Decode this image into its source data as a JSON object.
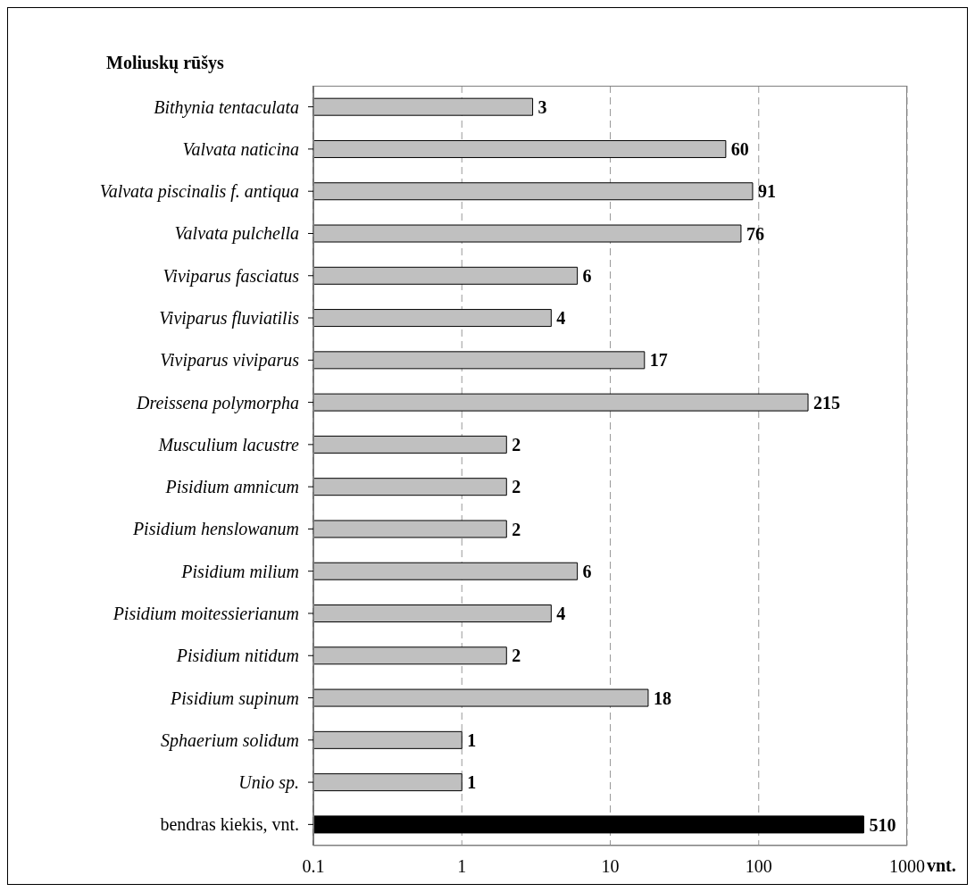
{
  "chart_data": {
    "type": "bar",
    "orientation": "horizontal",
    "ylabel": "Moliuskų rūšys",
    "xlabel": "vnt.",
    "categories": [
      "Bithynia tentaculata",
      "Valvata naticina",
      "Valvata piscinalis f. antiqua",
      "Valvata pulchella",
      "Viviparus fasciatus",
      "Viviparus fluviatilis",
      "Viviparus viviparus",
      "Dreissena polymorpha",
      "Musculium lacustre",
      "Pisidium amnicum",
      "Pisidium henslowanum",
      "Pisidium milium",
      "Pisidium moitessierianum",
      "Pisidium nitidum",
      "Pisidium supinum",
      "Sphaerium solidum",
      "Unio sp.",
      "bendras kiekis, vnt."
    ],
    "values": [
      3,
      60,
      91,
      76,
      6,
      4,
      17,
      215,
      2,
      2,
      2,
      6,
      4,
      2,
      18,
      1,
      1,
      510
    ],
    "colors": [
      "#c0c0c0",
      "#c0c0c0",
      "#c0c0c0",
      "#c0c0c0",
      "#c0c0c0",
      "#c0c0c0",
      "#c0c0c0",
      "#c0c0c0",
      "#c0c0c0",
      "#c0c0c0",
      "#c0c0c0",
      "#c0c0c0",
      "#c0c0c0",
      "#c0c0c0",
      "#c0c0c0",
      "#c0c0c0",
      "#c0c0c0",
      "#000000"
    ],
    "log": "x",
    "xlim": [
      0.1,
      1000
    ],
    "xticks": [
      0.1,
      1,
      10,
      100,
      1000
    ],
    "grid": "x",
    "data_labels": true
  }
}
